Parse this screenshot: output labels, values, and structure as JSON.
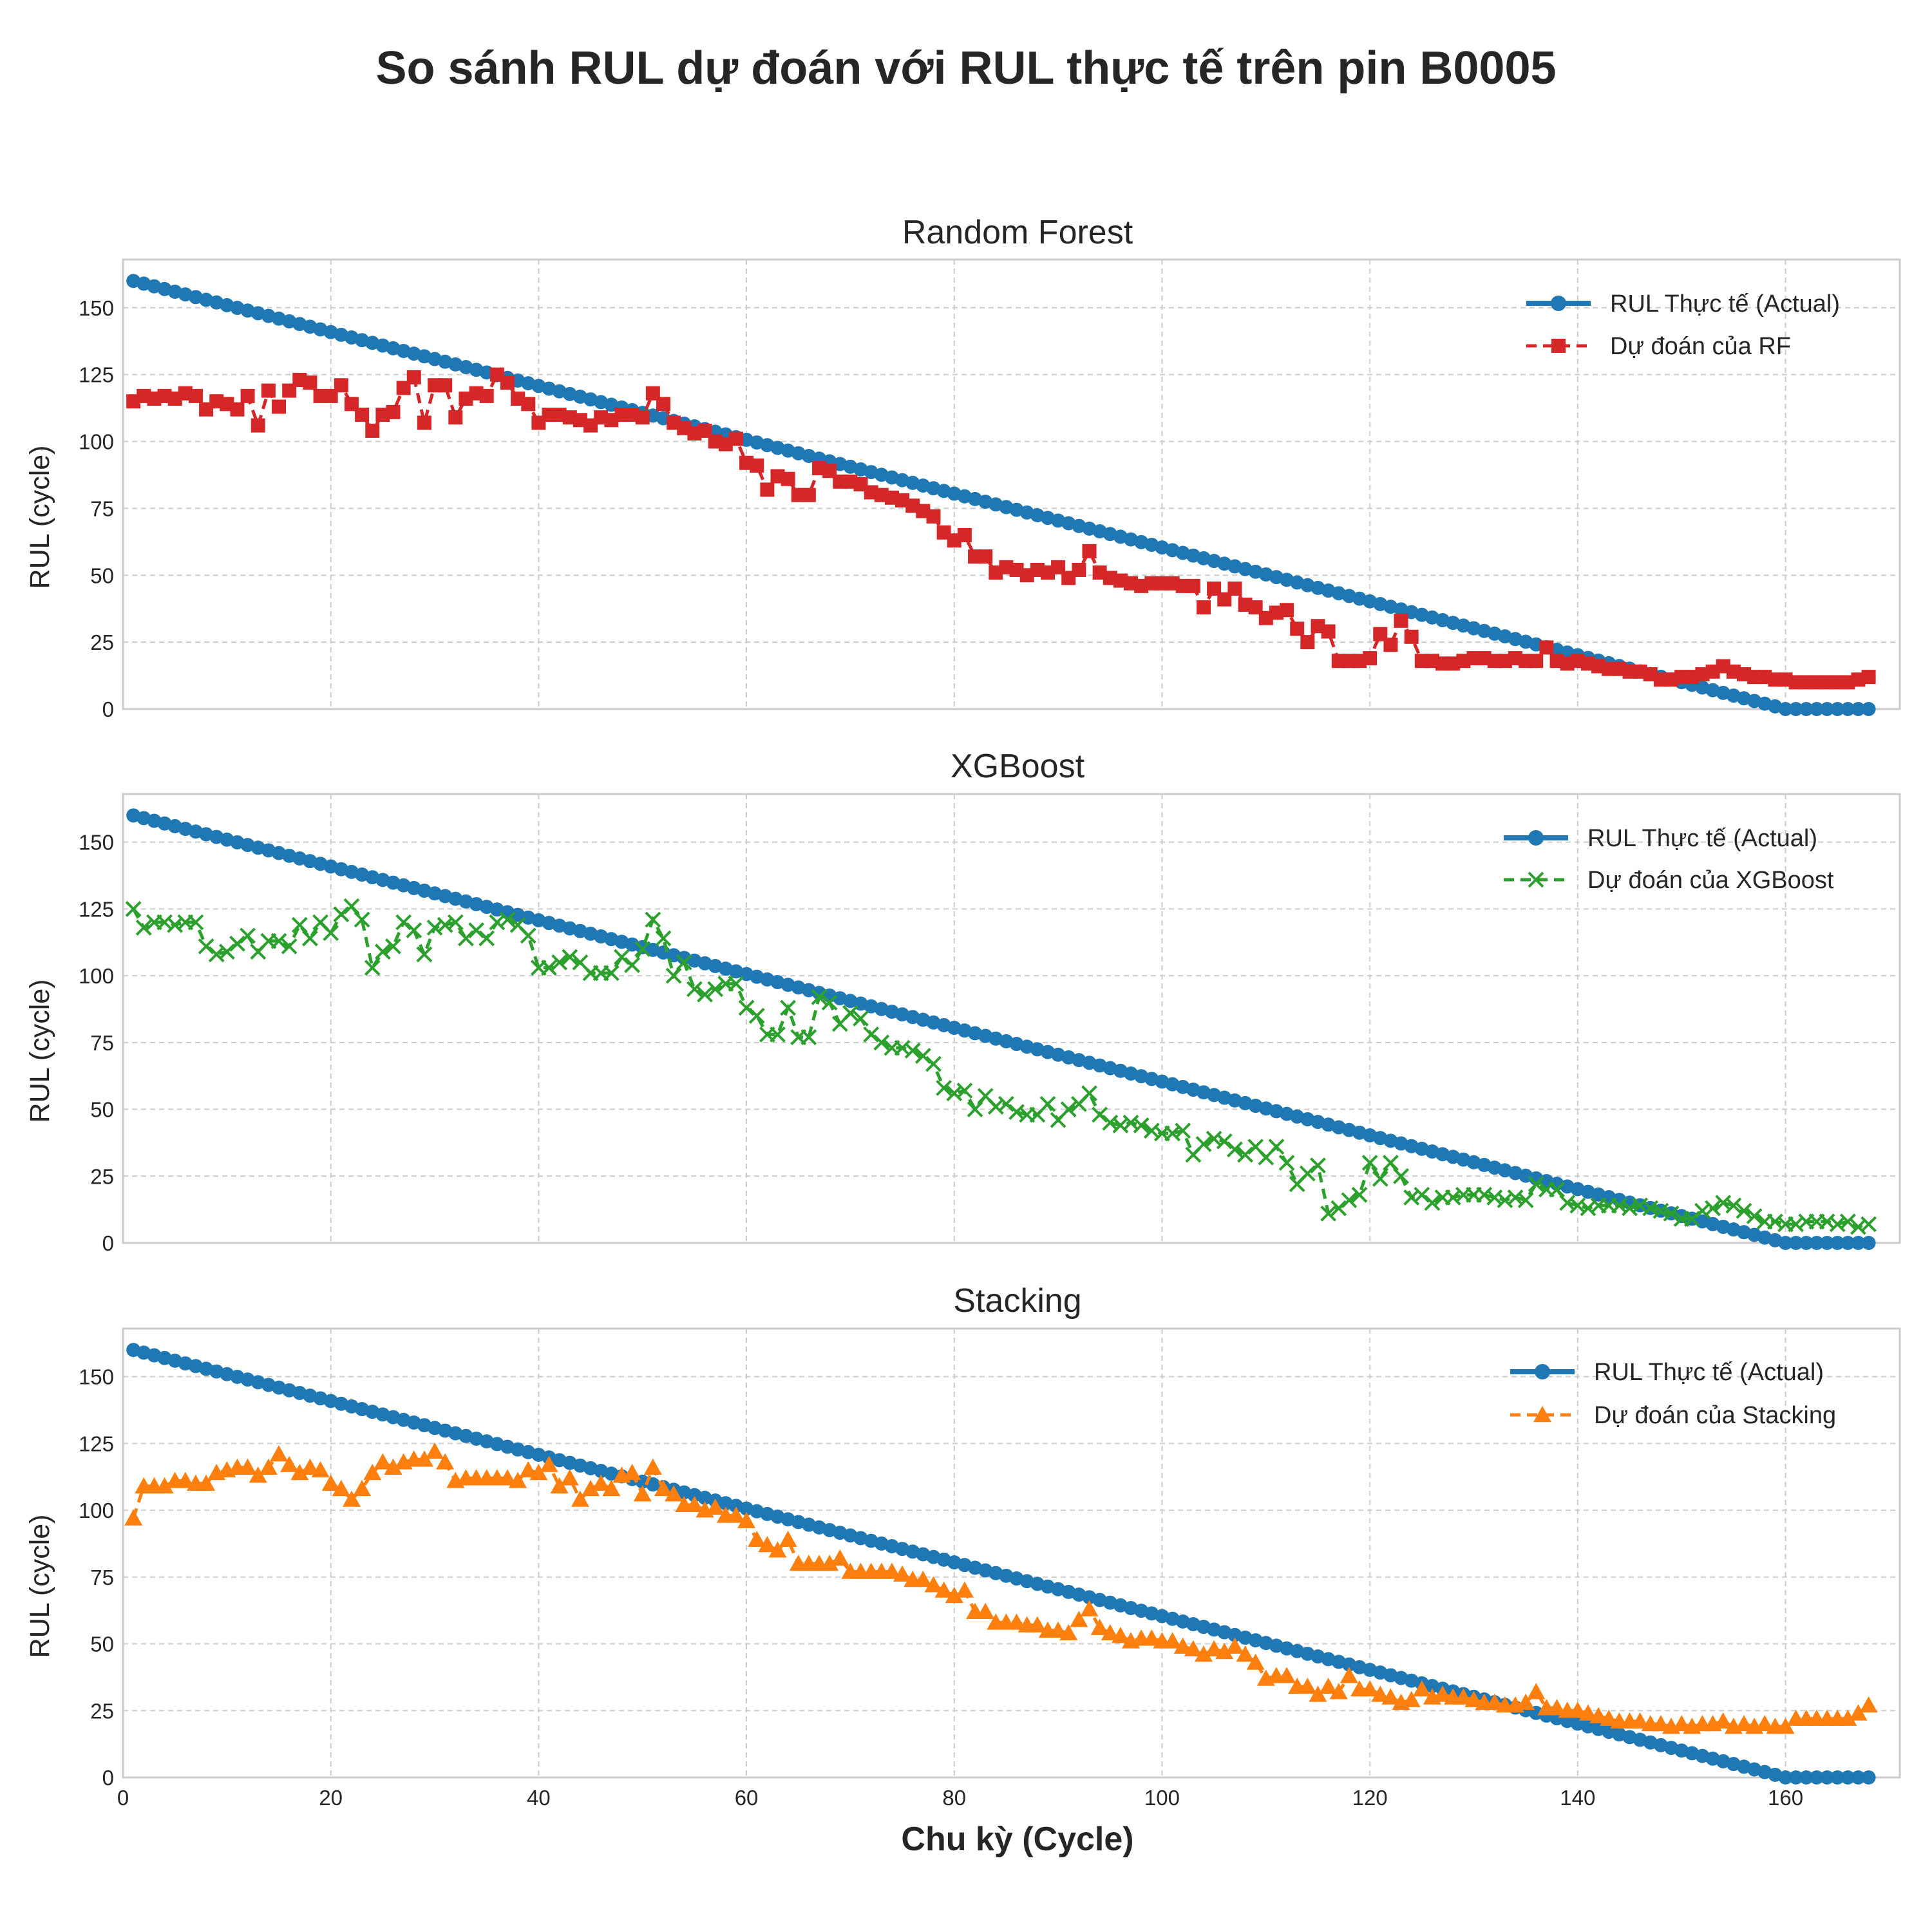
{
  "title": "So sánh RUL dự đoán với RUL thực tế trên pin B0005",
  "xlabel": "Chu kỳ (Cycle)",
  "colors": {
    "actual": "#1f77b4",
    "rf": "#d62728",
    "xgb": "#2ca02c",
    "stack": "#ff7f0e",
    "grid": "#cccccc",
    "frame": "#cccccc"
  },
  "chart_data": [
    {
      "type": "line",
      "title": "Random Forest",
      "xlabel": "Chu kỳ (Cycle)",
      "ylabel": "RUL (cycle)",
      "xlim": [
        0,
        171
      ],
      "ylim": [
        0,
        168
      ],
      "xticks": [
        0,
        20,
        40,
        60,
        80,
        100,
        120,
        140,
        160
      ],
      "yticks": [
        0,
        25,
        50,
        75,
        100,
        125,
        150
      ],
      "grid": true,
      "legend_position": "top-right",
      "actual": {
        "name": "RUL Thực tế (Actual)",
        "x_start": 1,
        "x_end": 168,
        "y_start": 160,
        "y_end_zero_at": 160,
        "marker": "circle"
      },
      "series": [
        {
          "name": "Dự đoán của RF",
          "marker": "square",
          "color": "#d62728",
          "values": [
            115,
            117,
            116,
            117,
            116,
            118,
            117,
            112,
            115,
            114,
            112,
            117,
            106,
            119,
            113,
            119,
            123,
            122,
            117,
            117,
            121,
            114,
            110,
            104,
            110,
            111,
            120,
            124,
            107,
            121,
            121,
            109,
            116,
            118,
            117,
            125,
            122,
            116,
            114,
            107,
            110,
            110,
            109,
            108,
            106,
            109,
            108,
            110,
            110,
            109,
            118,
            114,
            107,
            105,
            103,
            104,
            100,
            99,
            101,
            92,
            91,
            82,
            87,
            86,
            80,
            80,
            90,
            89,
            85,
            85,
            84,
            81,
            80,
            79,
            78,
            76,
            74,
            72,
            66,
            63,
            65,
            57,
            57,
            51,
            53,
            52,
            50,
            52,
            51,
            53,
            49,
            52,
            59,
            51,
            49,
            48,
            47,
            46,
            47,
            47,
            47,
            46,
            46,
            38,
            45,
            41,
            45,
            39,
            38,
            34,
            36,
            37,
            30,
            25,
            31,
            29,
            18,
            18,
            18,
            19,
            28,
            24,
            33,
            27,
            18,
            18,
            17,
            17,
            18,
            19,
            19,
            18,
            18,
            19,
            18,
            18,
            23,
            18,
            17,
            18,
            17,
            16,
            15,
            15,
            14,
            14,
            13,
            11,
            11,
            12,
            12,
            13,
            14,
            16,
            14,
            13,
            12,
            12,
            11,
            11,
            10,
            10,
            10,
            10,
            10,
            10,
            11,
            12
          ]
        }
      ]
    },
    {
      "type": "line",
      "title": "XGBoost",
      "xlabel": "Chu kỳ (Cycle)",
      "ylabel": "RUL (cycle)",
      "xlim": [
        0,
        171
      ],
      "ylim": [
        0,
        168
      ],
      "xticks": [
        0,
        20,
        40,
        60,
        80,
        100,
        120,
        140,
        160
      ],
      "yticks": [
        0,
        25,
        50,
        75,
        100,
        125,
        150
      ],
      "grid": true,
      "legend_position": "top-right",
      "actual": {
        "name": "RUL Thực tế (Actual)",
        "x_start": 1,
        "x_end": 168,
        "y_start": 160,
        "y_end_zero_at": 160,
        "marker": "circle"
      },
      "series": [
        {
          "name": "Dự đoán của XGBoost",
          "marker": "x",
          "color": "#2ca02c",
          "values": [
            125,
            118,
            120,
            120,
            119,
            120,
            120,
            111,
            108,
            109,
            112,
            115,
            109,
            113,
            113,
            111,
            119,
            114,
            120,
            116,
            123,
            126,
            121,
            103,
            109,
            111,
            120,
            117,
            108,
            118,
            119,
            120,
            114,
            117,
            114,
            120,
            121,
            119,
            115,
            103,
            103,
            105,
            107,
            105,
            101,
            101,
            101,
            107,
            104,
            110,
            121,
            114,
            100,
            105,
            95,
            93,
            95,
            97,
            97,
            88,
            85,
            78,
            78,
            88,
            77,
            77,
            92,
            90,
            82,
            86,
            84,
            78,
            75,
            73,
            73,
            72,
            70,
            67,
            58,
            56,
            57,
            50,
            55,
            51,
            52,
            49,
            48,
            48,
            52,
            46,
            50,
            52,
            56,
            48,
            45,
            44,
            45,
            44,
            42,
            41,
            41,
            42,
            33,
            37,
            39,
            38,
            35,
            33,
            36,
            32,
            36,
            30,
            22,
            26,
            29,
            11,
            13,
            16,
            18,
            30,
            24,
            30,
            25,
            17,
            18,
            15,
            17,
            17,
            18,
            18,
            18,
            17,
            16,
            17,
            16,
            22,
            20,
            20,
            15,
            14,
            13,
            14,
            14,
            14,
            13,
            14,
            13,
            12,
            11,
            9,
            9,
            12,
            13,
            15,
            14,
            12,
            10,
            8,
            8,
            7,
            7,
            8,
            8,
            8,
            7,
            8,
            6,
            7
          ]
        }
      ]
    },
    {
      "type": "line",
      "title": "Stacking",
      "xlabel": "Chu kỳ (Cycle)",
      "ylabel": "RUL (cycle)",
      "xlim": [
        0,
        171
      ],
      "ylim": [
        0,
        168
      ],
      "xticks": [
        0,
        20,
        40,
        60,
        80,
        100,
        120,
        140,
        160
      ],
      "yticks": [
        0,
        25,
        50,
        75,
        100,
        125,
        150
      ],
      "grid": true,
      "legend_position": "top-right",
      "actual": {
        "name": "RUL Thực tế (Actual)",
        "x_start": 1,
        "x_end": 168,
        "y_start": 160,
        "y_end_zero_at": 160,
        "marker": "circle"
      },
      "series": [
        {
          "name": "Dự đoán của Stacking",
          "marker": "triangle",
          "color": "#ff7f0e",
          "values": [
            97,
            109,
            109,
            109,
            111,
            111,
            110,
            110,
            114,
            115,
            116,
            116,
            113,
            116,
            121,
            117,
            114,
            116,
            115,
            110,
            108,
            104,
            108,
            114,
            118,
            116,
            118,
            119,
            119,
            122,
            118,
            111,
            112,
            112,
            112,
            112,
            112,
            111,
            115,
            114,
            117,
            109,
            112,
            104,
            108,
            110,
            108,
            113,
            114,
            106,
            116,
            108,
            106,
            102,
            102,
            100,
            101,
            98,
            98,
            96,
            89,
            87,
            85,
            89,
            80,
            80,
            80,
            80,
            82,
            77,
            77,
            77,
            77,
            77,
            76,
            74,
            74,
            72,
            70,
            68,
            70,
            62,
            62,
            58,
            58,
            58,
            57,
            57,
            55,
            55,
            54,
            59,
            63,
            56,
            54,
            53,
            51,
            52,
            52,
            51,
            51,
            49,
            48,
            46,
            48,
            47,
            49,
            46,
            43,
            37,
            38,
            38,
            34,
            34,
            31,
            34,
            32,
            38,
            33,
            33,
            31,
            30,
            28,
            29,
            33,
            30,
            31,
            30,
            30,
            29,
            28,
            28,
            27,
            27,
            28,
            32,
            26,
            26,
            25,
            25,
            24,
            23,
            22,
            21,
            21,
            21,
            20,
            20,
            19,
            20,
            19,
            20,
            20,
            21,
            19,
            20,
            19,
            20,
            19,
            19,
            22,
            22,
            22,
            22,
            22,
            22,
            24,
            27
          ]
        }
      ]
    }
  ]
}
